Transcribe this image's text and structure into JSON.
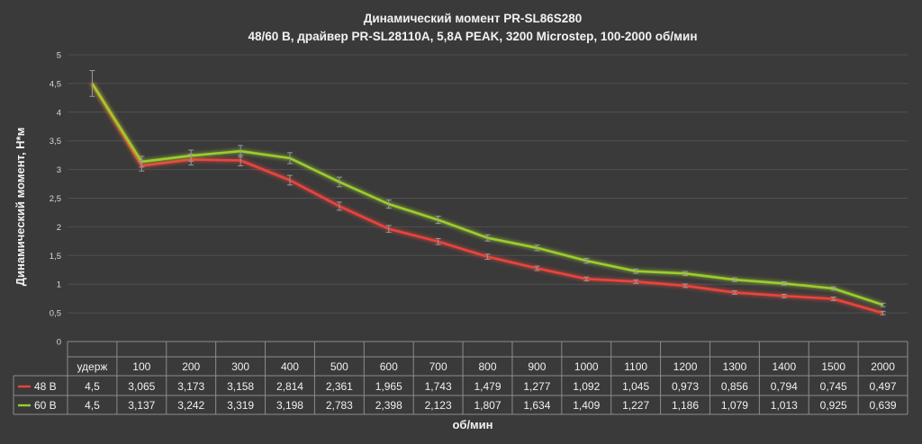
{
  "chart_data": {
    "type": "line",
    "title": "Динамический момент PR-SL86S280",
    "subtitle": "48/60 В, драйвер PR-SL28110A, 5,8A PEAK, 3200 Microstep, 100-2000 об/мин",
    "xlabel": "об/мин",
    "ylabel": "Динамический момент, Н*м",
    "ylim": [
      0,
      5
    ],
    "yticks": [
      "0",
      "0,5",
      "1",
      "1,5",
      "2",
      "2,5",
      "3",
      "3,5",
      "4",
      "4,5",
      "5"
    ],
    "grid": true,
    "error_bars": true,
    "legend_placement": "data-table",
    "categories": [
      "удерж",
      "100",
      "200",
      "300",
      "400",
      "500",
      "600",
      "700",
      "800",
      "900",
      "1000",
      "1100",
      "1200",
      "1300",
      "1400",
      "1500",
      "2000"
    ],
    "series": [
      {
        "name": "48 В",
        "color": "#e8453c",
        "values": [
          4.5,
          3.065,
          3.173,
          3.158,
          2.814,
          2.361,
          1.965,
          1.743,
          1.479,
          1.277,
          1.092,
          1.045,
          0.973,
          0.856,
          0.794,
          0.745,
          0.497
        ],
        "labels": [
          "4,5",
          "3,065",
          "3,173",
          "3,158",
          "2,814",
          "2,361",
          "1,965",
          "1,743",
          "1,479",
          "1,277",
          "1,092",
          "1,045",
          "0,973",
          "0,856",
          "0,794",
          "0,745",
          "0,497"
        ]
      },
      {
        "name": "60 В",
        "color": "#9ccc2e",
        "values": [
          4.5,
          3.137,
          3.242,
          3.319,
          3.198,
          2.783,
          2.398,
          2.123,
          1.807,
          1.634,
          1.409,
          1.227,
          1.186,
          1.079,
          1.013,
          0.925,
          0.639
        ],
        "labels": [
          "4,5",
          "3,137",
          "3,242",
          "3,319",
          "3,198",
          "2,783",
          "2,398",
          "2,123",
          "1,807",
          "1,634",
          "1,409",
          "1,227",
          "1,186",
          "1,079",
          "1,013",
          "0,925",
          "0,639"
        ]
      }
    ]
  }
}
